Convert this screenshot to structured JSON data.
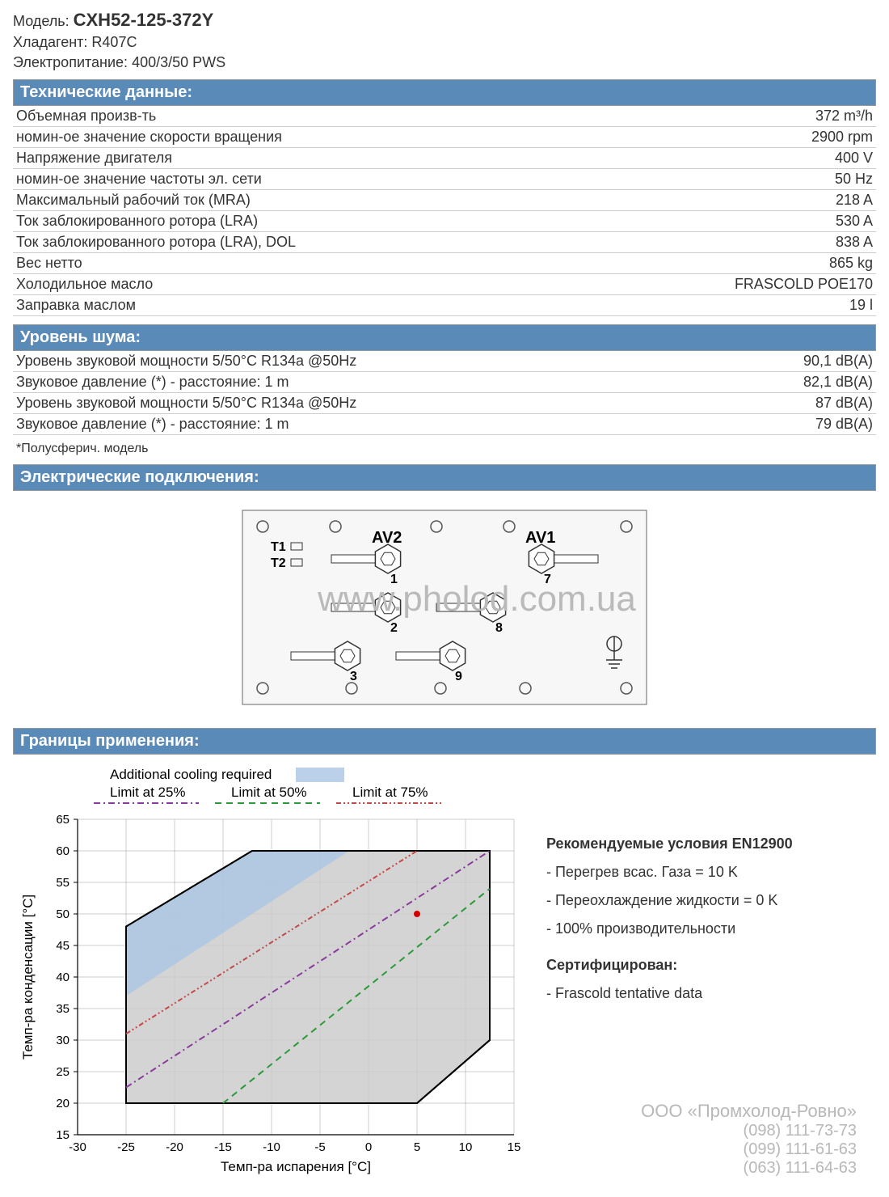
{
  "header": {
    "model_label": "Модель:",
    "model_value": "CXH52-125-372Y",
    "refrigerant_label": "Хладагент:",
    "refrigerant_value": "R407C",
    "power_label": "Электропитание:",
    "power_value": "400/3/50 PWS"
  },
  "tech": {
    "title": "Технические данные:",
    "rows": [
      {
        "label": "Объемная произв-ть",
        "value": "372 m³/h"
      },
      {
        "label": "номин-ое значение скорости вращения",
        "value": "2900 rpm"
      },
      {
        "label": "Напряжение двигателя",
        "value": "400 V"
      },
      {
        "label": "номин-ое значение частоты эл. сети",
        "value": "50 Hz"
      },
      {
        "label": "Максимальный рабочий ток (MRA)",
        "value": "218 A"
      },
      {
        "label": "Ток заблокированного ротора (LRA)",
        "value": "530 A"
      },
      {
        "label": "Ток заблокированного ротора (LRA), DOL",
        "value": "838 A"
      },
      {
        "label": "Вес нетто",
        "value": "865 kg"
      },
      {
        "label": "Холодильное масло",
        "value": "FRASCOLD POE170"
      },
      {
        "label": "Заправка маслом",
        "value": "19 l"
      }
    ]
  },
  "noise": {
    "title": "Уровень шума:",
    "rows": [
      {
        "label": "Уровень звуковой мощности 5/50°C R134a @50Hz",
        "value": "90,1 dB(A)"
      },
      {
        "label": "Звуковое давление (*) - расстояние: 1 m",
        "value": "82,1 dB(A)"
      },
      {
        "label": "Уровень звуковой мощности 5/50°C R134a @50Hz",
        "value": "87 dB(A)"
      },
      {
        "label": "Звуковое давление (*) - расстояние: 1 m",
        "value": "79 dB(A)"
      }
    ],
    "footnote": "*Полусферич. модель"
  },
  "electrical": {
    "title": "Электрические подключения:",
    "terminals": {
      "labels": {
        "av1": "AV1",
        "av2": "AV2",
        "t1": "T1",
        "t2": "T2"
      },
      "pins": [
        "1",
        "2",
        "3",
        "7",
        "8",
        "9"
      ]
    }
  },
  "limits": {
    "title": "Границы применения:",
    "legend": {
      "cooling": "Additional cooling required",
      "l25": "Limit at 25%",
      "l50": "Limit at 50%",
      "l75": "Limit at 75%"
    },
    "chart": {
      "type": "envelope",
      "xlabel": "Темп-ра испарения [°C]",
      "ylabel": "Темп-ра конденсации [°C]",
      "xlim": [
        -30,
        15
      ],
      "ylim": [
        15,
        65
      ],
      "xtick_step": 5,
      "ytick_step": 5,
      "background_color": "#ffffff",
      "grid_color": "#999999",
      "envelope_fill": "#cccccc",
      "envelope_stroke": "#000000",
      "cooling_fill": "#a9c5e3",
      "cooling_opacity": 0.8,
      "line25_color": "#8a3a9c",
      "line50_color": "#2a9a3a",
      "line75_color": "#c44848",
      "line_width": 2,
      "dash_25": "8 4 2 4",
      "dash_50": "8 6",
      "dash_75": "6 3 2 3 2 3",
      "operating_point": {
        "x": 5,
        "y": 50,
        "color": "#d30000",
        "r": 4
      },
      "envelope_points": [
        [
          -25,
          48
        ],
        [
          -12,
          60
        ],
        [
          12.5,
          60
        ],
        [
          12.5,
          30
        ],
        [
          5,
          20
        ],
        [
          -25,
          20
        ]
      ],
      "cooling_points": [
        [
          -25,
          48
        ],
        [
          -12,
          60
        ],
        [
          -2,
          60
        ],
        [
          -25,
          37
        ]
      ],
      "line25": [
        [
          -25,
          22.5
        ],
        [
          12.5,
          60
        ]
      ],
      "line50": [
        [
          -15,
          20
        ],
        [
          12.5,
          54
        ]
      ],
      "line75": [
        [
          -25,
          31
        ],
        [
          5,
          60
        ]
      ]
    },
    "side": {
      "rec_title": "Рекомендуемые условия  EN12900",
      "items": [
        "- Перегрев всас. Газа = 10 K",
        "- Переохлаждение жидкости = 0 K",
        "- 100% производительности"
      ],
      "cert_title": "Сертифицирован:",
      "cert_items": [
        "- Frascold tentative data"
      ]
    }
  },
  "company": {
    "name": "ООО «Промхолод-Ровно»",
    "phones": [
      "(098) 111-73-73",
      "(099) 111-61-63",
      "(063) 111-64-63"
    ]
  },
  "watermark": "www.pholod.com.ua"
}
